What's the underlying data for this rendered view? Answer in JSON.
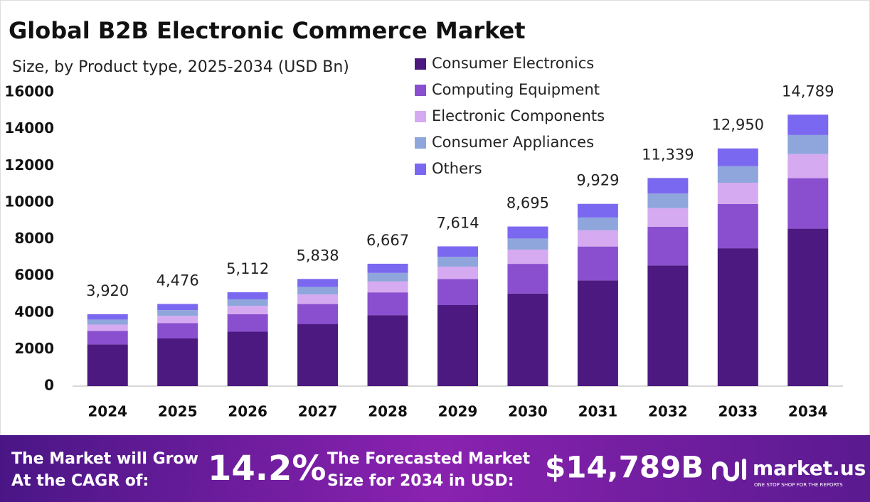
{
  "chart_data": {
    "type": "stacked-bar",
    "title": "Global B2B Electronic Commerce Market",
    "subtitle": "Size, by Product type, 2025-2034 (USD Bn)",
    "categories": [
      "2024",
      "2025",
      "2026",
      "2027",
      "2028",
      "2029",
      "2030",
      "2031",
      "2032",
      "2033",
      "2034"
    ],
    "series": [
      {
        "name": "Consumer Electronics",
        "color": "#4b1980",
        "values": [
          2274,
          2596,
          2965,
          3386,
          3867,
          4416,
          5043,
          5759,
          6577,
          7511,
          8578
        ]
      },
      {
        "name": "Computing Equipment",
        "color": "#8a4fcf",
        "values": [
          729,
          833,
          951,
          1086,
          1240,
          1416,
          1617,
          1847,
          2109,
          2409,
          2751
        ]
      },
      {
        "name": "Electronic Components",
        "color": "#d6aaf0",
        "values": [
          349,
          398,
          455,
          520,
          593,
          678,
          774,
          884,
          1009,
          1153,
          1316
        ]
      },
      {
        "name": "Consumer Appliances",
        "color": "#8fa6dc",
        "values": [
          274,
          313,
          358,
          409,
          467,
          533,
          609,
          695,
          794,
          907,
          1035
        ]
      },
      {
        "name": "Others",
        "color": "#7b68f0",
        "values": [
          294,
          336,
          383,
          437,
          500,
          571,
          652,
          744,
          850,
          970,
          1109
        ]
      }
    ],
    "totals": [
      3920,
      4476,
      5112,
      5838,
      6667,
      7614,
      8695,
      9929,
      11339,
      12950,
      14789
    ],
    "total_labels": [
      "3,920",
      "4,476",
      "5,112",
      "5,838",
      "6,667",
      "7,614",
      "8,695",
      "9,929",
      "11,339",
      "12,950",
      "14,789"
    ],
    "ylim": [
      0,
      16000
    ],
    "yticks": [
      0,
      2000,
      4000,
      6000,
      8000,
      10000,
      12000,
      14000,
      16000
    ],
    "grid": false,
    "legend": "top-right"
  },
  "footer": {
    "cagr_text": [
      "The Market will Grow",
      "At the CAGR of:"
    ],
    "cagr_value": "14.2%",
    "size_text": [
      "The Forecasted Market",
      "Size for 2034 in USD:"
    ],
    "size_value": "$14,789B",
    "brand": "market.us",
    "tagline": "ONE STOP SHOP FOR THE REPORTS"
  }
}
